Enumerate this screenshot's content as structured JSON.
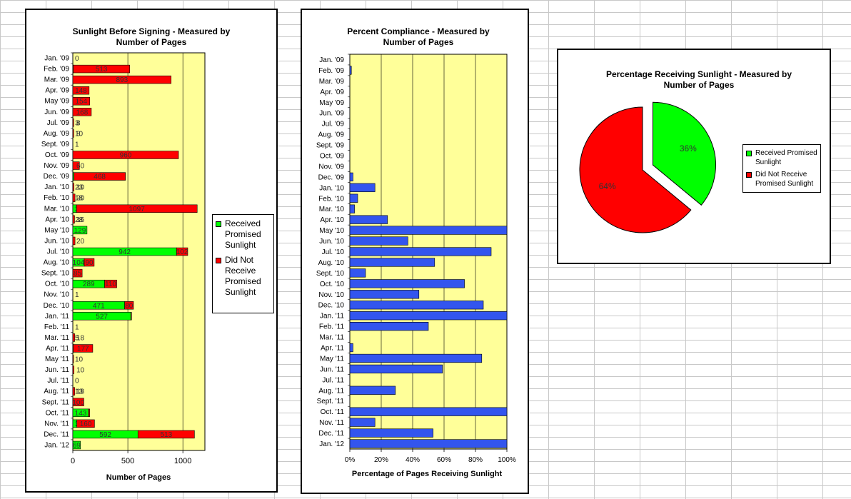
{
  "colors": {
    "received": "#00ff00",
    "not_received": "#ff0000",
    "compliance": "#3355ee",
    "plot_bg": "#ffff99"
  },
  "chart_data": [
    {
      "type": "bar",
      "orientation": "horizontal",
      "stacked": true,
      "title": "Sunlight Before Signing - Measured by Number of Pages",
      "xlabel": "Number of Pages",
      "ylabel": "",
      "xlim": [
        0,
        1200
      ],
      "xticks": [
        0,
        500,
        1000
      ],
      "legend_position": "right",
      "categories": [
        "Jan. '09",
        "Feb. '09",
        "Mar. '09",
        "Apr. '09",
        "May '09",
        "Jun. '09",
        "Jul. '09",
        "Aug. '09",
        "Sept. '09",
        "Oct. '09",
        "Nov. '09",
        "Dec. '09",
        "Jan. '10",
        "Feb. '10",
        "Mar. '10",
        "Apr. '10",
        "May '10",
        "Jun. '10",
        "Jul. '10",
        "Aug. '10",
        "Sept. '10",
        "Oct. '10",
        "Nov. '10",
        "Dec. '10",
        "Jan. '11",
        "Feb. '11",
        "Mar. '11",
        "Apr. '11",
        "May '11",
        "Jun. '11",
        "Jul. '11",
        "Aug. '11",
        "Sept. '11",
        "Oct. '11",
        "Nov. '11",
        "Dec. '11",
        "Jan. '12"
      ],
      "series": [
        {
          "name": "Received Promised Sunlight",
          "values": [
            0,
            4,
            0,
            0,
            0,
            0,
            0,
            0,
            0,
            0,
            0,
            10,
            0,
            0,
            33,
            0,
            129,
            0,
            942,
            104,
            0,
            289,
            0,
            471,
            527,
            0,
            0,
            4,
            0,
            0,
            0,
            0,
            0,
            143,
            37,
            592,
            69
          ],
          "labels": [
            "0",
            "4",
            "0",
            "0",
            "0",
            "0",
            "",
            "",
            "",
            "0",
            "",
            "10",
            "",
            "",
            "33",
            "",
            "129",
            "",
            "942",
            "104",
            "",
            "289",
            "",
            "471",
            "527",
            "",
            "",
            "4",
            "",
            "",
            "0",
            "",
            "0",
            "143",
            "37",
            "592",
            "69"
          ]
        },
        {
          "name": "Did Not Receive Promised Sunlight",
          "values": [
            0,
            513,
            893,
            148,
            154,
            168,
            8,
            8,
            0,
            960,
            60,
            468,
            10,
            20,
            1097,
            16,
            0,
            20,
            102,
            90,
            85,
            110,
            0,
            80,
            3,
            0,
            18,
            177,
            5,
            10,
            0,
            18,
            100,
            10,
            160,
            513,
            0
          ],
          "labels": [
            "",
            "513",
            "893",
            "148",
            "154",
            "168",
            "8",
            "8",
            "",
            "960",
            "60",
            "468",
            "10",
            "20",
            "1097",
            "16",
            "",
            "20",
            "102",
            "90",
            "85",
            "110",
            "",
            "80",
            "",
            "",
            "18",
            "177",
            "",
            "10",
            "",
            "18",
            "100",
            "",
            "160",
            "513",
            ""
          ]
        }
      ],
      "stray_labels": [
        "1",
        "1",
        "5",
        "10",
        "23",
        "18",
        "28",
        "3",
        "10",
        "1",
        "13"
      ]
    },
    {
      "type": "bar",
      "orientation": "horizontal",
      "title": "Percent  Compliance - Measured by Number of Pages",
      "xlabel": "Percentage of Pages Receiving Sunlight",
      "ylabel": "",
      "xlim": [
        0,
        100
      ],
      "xticks": [
        "0%",
        "20%",
        "40%",
        "60%",
        "80%",
        "100%"
      ],
      "categories": [
        "Jan. '09",
        "Feb. '09",
        "Mar. '09",
        "Apr. '09",
        "May '09",
        "Jun. '09",
        "Jul. '09",
        "Aug. '09",
        "Sept. '09",
        "Oct. '09",
        "Nov. '09",
        "Dec. '09",
        "Jan. '10",
        "Feb. '10",
        "Mar. '10",
        "Apr. '10",
        "May '10",
        "Jun. '10",
        "Jul. '10",
        "Aug. '10",
        "Sept. '10",
        "Oct. '10",
        "Nov. '10",
        "Dec. '10",
        "Jan. '11",
        "Feb. '11",
        "Mar. '11",
        "Apr. '11",
        "May '11",
        "Jun. '11",
        "Jul. '11",
        "Aug. '11",
        "Sept. '11",
        "Oct. '11",
        "Nov. '11",
        "Dec. '11",
        "Jan. '12"
      ],
      "values": [
        0,
        1,
        0,
        0,
        0,
        0,
        0,
        0,
        0,
        0,
        0,
        2,
        16,
        5,
        3,
        24,
        100,
        37,
        90,
        54,
        10,
        73,
        44,
        85,
        100,
        50,
        0,
        2,
        84,
        59,
        0,
        29,
        0,
        100,
        16,
        53,
        100
      ]
    },
    {
      "type": "pie",
      "title": "Percentage Receiving Sunlight - Measured by Number of Pages",
      "legend_position": "right",
      "slices": [
        {
          "label": "Received Promised Sunlight",
          "value": 36,
          "text": "36%",
          "color": "#00ff00",
          "exploded": true
        },
        {
          "label": "Did Not Receive Promised Sunlight",
          "value": 64,
          "text": "64%",
          "color": "#ff0000",
          "exploded": false
        }
      ]
    }
  ]
}
